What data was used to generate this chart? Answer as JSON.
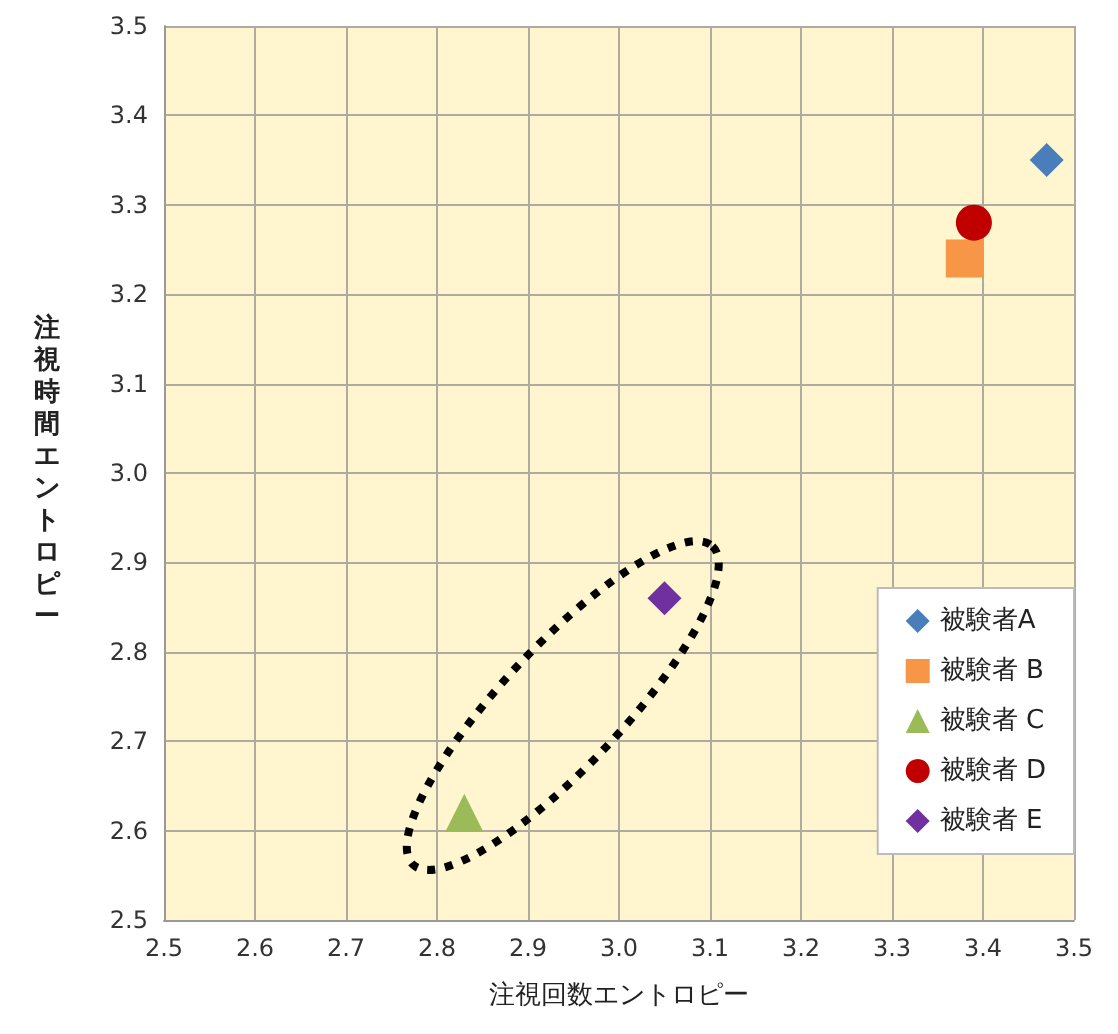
{
  "chart_data": {
    "type": "scatter",
    "xlabel": "注視回数エントロピー",
    "ylabel": "注視時間エントロピー",
    "xlim": [
      2.5,
      3.5
    ],
    "xticks": [
      2.5,
      2.6,
      2.7,
      2.8,
      2.9,
      {
        "value": 3,
        "label": "3.0"
      },
      3.1,
      3.2,
      3.3,
      3.4,
      3.5
    ],
    "ylim": [
      2.5,
      3.5
    ],
    "yticks": [
      2.5,
      2.6,
      2.7,
      2.8,
      2.9,
      {
        "value": 3,
        "label": "3.0"
      },
      3.1,
      3.2,
      3.3,
      3.4,
      3.5
    ],
    "grid": true,
    "legend": "bottom right",
    "series": [
      {
        "name": "被験者A",
        "color": "#4a7ebb",
        "marker": "diamond",
        "x": [
          3.47
        ],
        "values": [
          3.35
        ]
      },
      {
        "name": "被験者 B",
        "color": "#f79646",
        "marker": "square",
        "x": [
          3.38
        ],
        "values": [
          3.24
        ]
      },
      {
        "name": "被験者 C",
        "color": "#9bbb59",
        "marker": "triangle",
        "x": [
          2.83
        ],
        "values": [
          2.62
        ]
      },
      {
        "name": "被験者 D",
        "color": "#c00000",
        "marker": "circle",
        "x": [
          3.39
        ],
        "values": [
          3.28
        ]
      },
      {
        "name": "被験者 E",
        "color": "#7030a0",
        "marker": "diamond",
        "x": [
          3.05
        ],
        "values": [
          2.86
        ]
      }
    ]
  }
}
